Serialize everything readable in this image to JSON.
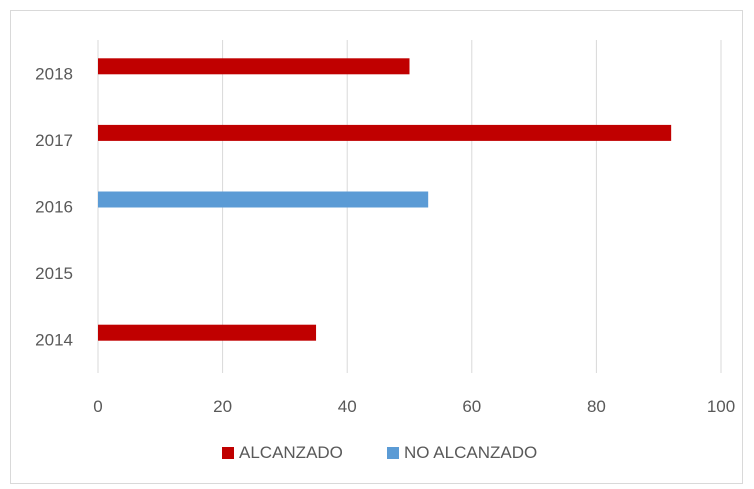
{
  "chart_data": {
    "type": "bar",
    "orientation": "horizontal",
    "categories": [
      "2014",
      "2015",
      "2016",
      "2017",
      "2018"
    ],
    "series": [
      {
        "name": "ALCANZADO",
        "color": "#c00000",
        "values": [
          35,
          null,
          null,
          92,
          50
        ]
      },
      {
        "name": "NO ALCANZADO",
        "color": "#5b9bd5",
        "values": [
          null,
          null,
          53,
          null,
          null
        ]
      }
    ],
    "xlim": [
      0,
      100
    ],
    "xticks": [
      0,
      20,
      40,
      60,
      80,
      100
    ],
    "title": "",
    "xlabel": "",
    "ylabel": "",
    "grid": "vertical",
    "legend_position": "bottom"
  }
}
